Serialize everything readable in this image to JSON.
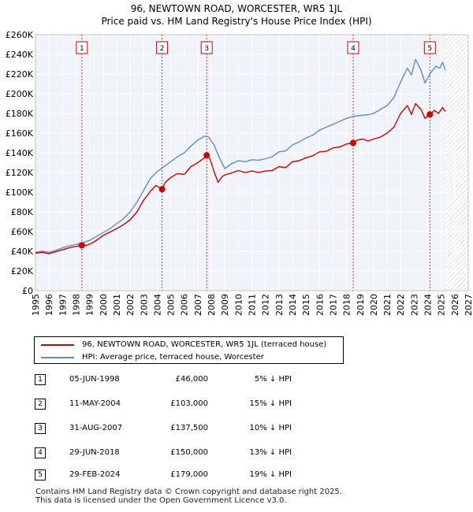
{
  "header": {
    "title": "96, NEWTOWN ROAD, WORCESTER, WR5 1JL",
    "subtitle": "Price paid vs. HM Land Registry's House Price Index (HPI)"
  },
  "chart_data": {
    "type": "line",
    "title": "96, NEWTOWN ROAD, WORCESTER, WR5 1JL",
    "subtitle": "Price paid vs. HM Land Registry's House Price Index (HPI)",
    "xlabel": "",
    "ylabel": "",
    "xlim": [
      1995,
      2027
    ],
    "ylim": [
      0,
      260000
    ],
    "y_ticks": [
      0,
      20000,
      40000,
      60000,
      80000,
      100000,
      120000,
      140000,
      160000,
      180000,
      200000,
      220000,
      240000,
      260000
    ],
    "y_tick_labels": [
      "£0",
      "£20K",
      "£40K",
      "£60K",
      "£80K",
      "£100K",
      "£120K",
      "£140K",
      "£160K",
      "£180K",
      "£200K",
      "£220K",
      "£240K",
      "£260K"
    ],
    "x_ticks": [
      1995,
      1996,
      1997,
      1998,
      1999,
      2000,
      2001,
      2002,
      2003,
      2004,
      2005,
      2006,
      2007,
      2008,
      2009,
      2010,
      2011,
      2012,
      2013,
      2014,
      2015,
      2016,
      2017,
      2018,
      2019,
      2020,
      2021,
      2022,
      2023,
      2024,
      2025,
      2026,
      2027
    ],
    "future_start": 2025.3,
    "series": [
      {
        "name": "96, NEWTOWN ROAD, WORCESTER, WR5 1JL (terraced house)",
        "color": "#cc0000",
        "x": [
          1995,
          1995.5,
          1996,
          1996.5,
          1997,
          1997.5,
          1998,
          1998.43,
          1998.8,
          1999.2,
          1999.6,
          2000,
          2000.5,
          2001,
          2001.5,
          2002,
          2002.5,
          2003,
          2003.5,
          2003.9,
          2004.36,
          2004.6,
          2005,
          2005.5,
          2006,
          2006.5,
          2007,
          2007.5,
          2007.66,
          2007.9,
          2008.2,
          2008.5,
          2008.8,
          2009.1,
          2009.5,
          2010,
          2010.5,
          2011,
          2011.5,
          2012,
          2012.5,
          2013,
          2013.5,
          2014,
          2014.5,
          2015,
          2015.5,
          2016,
          2016.5,
          2017,
          2017.5,
          2018,
          2018.49,
          2018.8,
          2019.2,
          2019.6,
          2020,
          2020.5,
          2021,
          2021.5,
          2022,
          2022.5,
          2022.8,
          2023.1,
          2023.5,
          2023.8,
          2024.16,
          2024.5,
          2024.8,
          2025.1,
          2025.3
        ],
        "values": [
          38000,
          39000,
          37500,
          39500,
          41500,
          43500,
          45000,
          46000,
          46000,
          48500,
          52000,
          56000,
          59500,
          63000,
          67000,
          72000,
          80000,
          92000,
          101000,
          107000,
          103000,
          110000,
          115000,
          119000,
          118000,
          126000,
          130000,
          135000,
          137500,
          134000,
          121000,
          110000,
          116000,
          118000,
          119500,
          122000,
          120000,
          121500,
          120000,
          121500,
          122000,
          126000,
          125000,
          131000,
          132000,
          135000,
          137000,
          141000,
          141500,
          145000,
          146000,
          149000,
          150000,
          153000,
          154000,
          152000,
          154000,
          156000,
          160000,
          166000,
          180000,
          188000,
          179000,
          190000,
          184000,
          175000,
          179000,
          183000,
          180000,
          186000,
          182000
        ]
      },
      {
        "name": "HPI: Average price, terraced house, Worcester",
        "color": "#5b8fc7",
        "x": [
          1995,
          1995.5,
          1996,
          1996.5,
          1997,
          1997.5,
          1998,
          1998.5,
          1999,
          1999.5,
          2000,
          2000.5,
          2001,
          2001.5,
          2002,
          2002.5,
          2003,
          2003.5,
          2004,
          2004.5,
          2005,
          2005.5,
          2006,
          2006.5,
          2007,
          2007.5,
          2007.8,
          2008.2,
          2008.6,
          2009,
          2009.5,
          2010,
          2010.5,
          2011,
          2011.5,
          2012,
          2012.5,
          2013,
          2013.5,
          2014,
          2014.5,
          2015,
          2015.5,
          2016,
          2016.5,
          2017,
          2017.5,
          2018,
          2018.5,
          2019,
          2019.5,
          2020,
          2020.5,
          2021,
          2021.5,
          2022,
          2022.5,
          2022.8,
          2023.1,
          2023.5,
          2023.8,
          2024.2,
          2024.6,
          2024.9,
          2025.1,
          2025.3
        ],
        "values": [
          39000,
          40000,
          39000,
          41000,
          43500,
          45500,
          47000,
          49000,
          51000,
          55000,
          59000,
          63000,
          68000,
          73000,
          80000,
          90000,
          102000,
          114000,
          121000,
          126000,
          131000,
          136000,
          140000,
          147000,
          153000,
          157000,
          156000,
          148000,
          135000,
          124000,
          129000,
          132000,
          131000,
          133000,
          132500,
          134000,
          136000,
          141000,
          142000,
          148000,
          151000,
          155000,
          158000,
          163000,
          166000,
          169000,
          172000,
          175000,
          177000,
          178000,
          178500,
          180000,
          184000,
          188000,
          196000,
          212000,
          226000,
          219000,
          235000,
          224000,
          211000,
          221000,
          228000,
          226000,
          232000,
          224000
        ]
      }
    ],
    "sales": [
      {
        "label": "1",
        "x": 1998.43,
        "value": 46000
      },
      {
        "label": "2",
        "x": 2004.36,
        "value": 103000
      },
      {
        "label": "3",
        "x": 2007.66,
        "value": 137500
      },
      {
        "label": "4",
        "x": 2018.49,
        "value": 150000
      },
      {
        "label": "5",
        "x": 2024.16,
        "value": 179000
      }
    ]
  },
  "legend": {
    "items": [
      {
        "label": "96, NEWTOWN ROAD, WORCESTER, WR5 1JL (terraced house)",
        "color": "#cc0000"
      },
      {
        "label": "HPI: Average price, terraced house, Worcester",
        "color": "#5b8fc7"
      }
    ]
  },
  "transactions": [
    {
      "num": "1",
      "date": "05-JUN-1998",
      "price": "£46,000",
      "hpi": "5% ↓ HPI"
    },
    {
      "num": "2",
      "date": "11-MAY-2004",
      "price": "£103,000",
      "hpi": "15% ↓ HPI"
    },
    {
      "num": "3",
      "date": "31-AUG-2007",
      "price": "£137,500",
      "hpi": "10% ↓ HPI"
    },
    {
      "num": "4",
      "date": "29-JUN-2018",
      "price": "£150,000",
      "hpi": "13% ↓ HPI"
    },
    {
      "num": "5",
      "date": "29-FEB-2024",
      "price": "£179,000",
      "hpi": "19% ↓ HPI"
    }
  ],
  "footer": {
    "line1": "Contains HM Land Registry data © Crown copyright and database right 2025.",
    "line2": "This data is licensed under the Open Government Licence v3.0."
  }
}
